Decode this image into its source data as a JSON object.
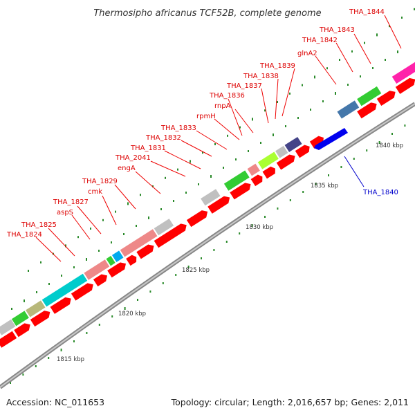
{
  "title": "Thermosipho africanus TCF52B, complete genome",
  "footer": {
    "accession": "Accession: NC_011653",
    "summary": "Topology: circular; Length: 2,016,657 bp; Genes: 2,011"
  },
  "colors": {
    "forward_strand_gene": "#ff0000",
    "reverse_strand_gene": "#0000ff",
    "backbone": "#888888",
    "ticks": "#2a8a2a",
    "label_forward": "#dd0000",
    "label_reverse": "#0000cc"
  },
  "tick_labels": [
    "1815 kbp",
    "1820 kbp",
    "1825 kbp",
    "1830 kbp",
    "1835 kbp",
    "1840 kbp"
  ],
  "gene_labels": {
    "forward": [
      "THA_1824",
      "THA_1825",
      "aspS",
      "THA_1827",
      "cmk",
      "THA_1829",
      "engA",
      "THA_2041",
      "THA_1831",
      "THA_1832",
      "THA_1833",
      "rpmH",
      "THA_1836",
      "rnpA",
      "THA_1837",
      "THA_1838",
      "THA_1839",
      "glnA2",
      "THA_1842",
      "THA_1843",
      "THA_1844"
    ],
    "reverse": [
      "THA_1840"
    ]
  }
}
